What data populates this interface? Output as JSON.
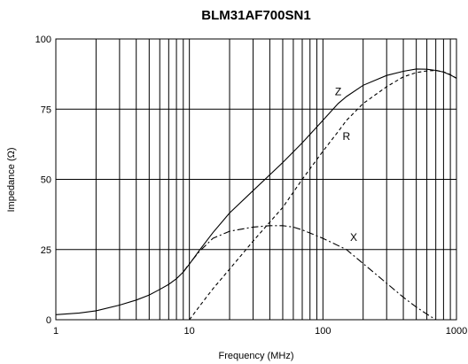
{
  "chart_data": {
    "type": "line",
    "title": "BLM31AF700SN1",
    "xlabel": "Frequency (MHz)",
    "ylabel": "Impedance (Ω)",
    "xscale": "log",
    "xlim": [
      1,
      1000
    ],
    "ylim": [
      0,
      100
    ],
    "xticks": [
      1,
      10,
      100,
      1000
    ],
    "xtick_labels": [
      "1",
      "10",
      "100",
      "1000"
    ],
    "yticks": [
      0,
      25,
      50,
      75,
      100
    ],
    "ytick_labels": [
      "0",
      "25",
      "50",
      "75",
      "100"
    ],
    "grid": true,
    "series": [
      {
        "name": "Z",
        "style": "solid",
        "points": [
          [
            1,
            1.8
          ],
          [
            1.5,
            2.4
          ],
          [
            2,
            3.2
          ],
          [
            3,
            5.2
          ],
          [
            4,
            7
          ],
          [
            5,
            8.8
          ],
          [
            6,
            10.8
          ],
          [
            7,
            12.6
          ],
          [
            8,
            14.6
          ],
          [
            9,
            17
          ],
          [
            10,
            19.8
          ],
          [
            12,
            25
          ],
          [
            15,
            31
          ],
          [
            20,
            38
          ],
          [
            30,
            46
          ],
          [
            50,
            56
          ],
          [
            70,
            63
          ],
          [
            100,
            71
          ],
          [
            130,
            77
          ],
          [
            150,
            79.5
          ],
          [
            200,
            83.5
          ],
          [
            300,
            87
          ],
          [
            400,
            88.5
          ],
          [
            500,
            89.3
          ],
          [
            600,
            89.2
          ],
          [
            700,
            88.8
          ],
          [
            800,
            88.2
          ],
          [
            900,
            87.2
          ],
          [
            1000,
            86
          ]
        ]
      },
      {
        "name": "R",
        "style": "dashed",
        "points": [
          [
            10,
            0
          ],
          [
            12,
            5
          ],
          [
            15,
            11
          ],
          [
            20,
            18
          ],
          [
            30,
            28
          ],
          [
            50,
            40
          ],
          [
            70,
            50
          ],
          [
            100,
            60
          ],
          [
            130,
            67
          ],
          [
            150,
            71
          ],
          [
            200,
            77
          ],
          [
            300,
            83
          ],
          [
            400,
            86.5
          ],
          [
            500,
            88
          ],
          [
            600,
            88.6
          ],
          [
            700,
            88.8
          ],
          [
            800,
            88.3
          ],
          [
            900,
            87.3
          ],
          [
            1000,
            86
          ]
        ]
      },
      {
        "name": "X",
        "style": "dash-dot",
        "points": [
          [
            9,
            17
          ],
          [
            10,
            20
          ],
          [
            12,
            24.5
          ],
          [
            15,
            29
          ],
          [
            20,
            31.5
          ],
          [
            30,
            33
          ],
          [
            40,
            33.5
          ],
          [
            50,
            33.5
          ],
          [
            60,
            33
          ],
          [
            70,
            32
          ],
          [
            100,
            29
          ],
          [
            150,
            25
          ],
          [
            200,
            20
          ],
          [
            300,
            13
          ],
          [
            400,
            8
          ],
          [
            500,
            4.5
          ],
          [
            600,
            2
          ],
          [
            700,
            0
          ]
        ]
      }
    ],
    "series_labels": [
      {
        "text": "Z",
        "x": 130,
        "y": 80
      },
      {
        "text": "R",
        "x": 150,
        "y": 64
      },
      {
        "text": "X",
        "x": 170,
        "y": 28
      }
    ]
  }
}
